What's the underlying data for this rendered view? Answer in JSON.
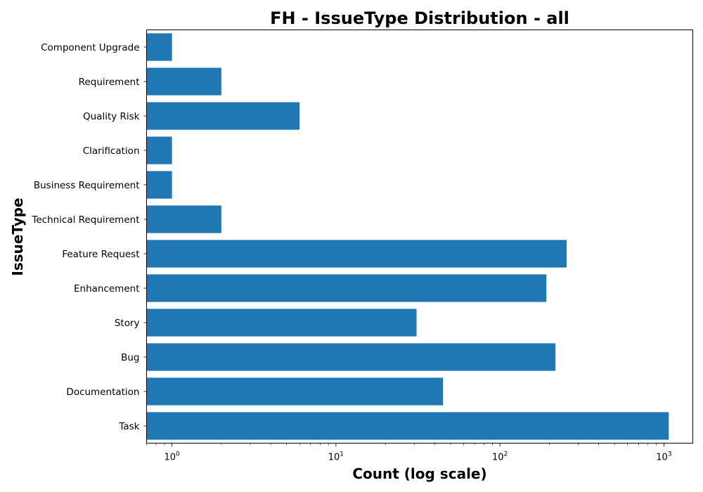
{
  "chart_data": {
    "type": "bar",
    "orientation": "horizontal",
    "title": "FH - IssueType Distribution - all",
    "xlabel": "Count (log scale)",
    "ylabel": "IssueType",
    "x_scale": "log",
    "xlim": [
      0.7,
      1500
    ],
    "x_ticks": [
      {
        "base": "10",
        "exp": "0",
        "value": 1
      },
      {
        "base": "10",
        "exp": "1",
        "value": 10
      },
      {
        "base": "10",
        "exp": "2",
        "value": 100
      },
      {
        "base": "10",
        "exp": "3",
        "value": 1000
      }
    ],
    "categories": [
      "Component Upgrade",
      "Requirement",
      "Quality Risk",
      "Clarification",
      "Business Requirement",
      "Technical Requirement",
      "Feature Request",
      "Enhancement",
      "Story",
      "Bug",
      "Documentation",
      "Task"
    ],
    "values": [
      1,
      2,
      6,
      1,
      1,
      2,
      255,
      192,
      31,
      218,
      45,
      1070
    ],
    "bar_color": "#1f77b4",
    "grid": false,
    "legend": "none"
  }
}
